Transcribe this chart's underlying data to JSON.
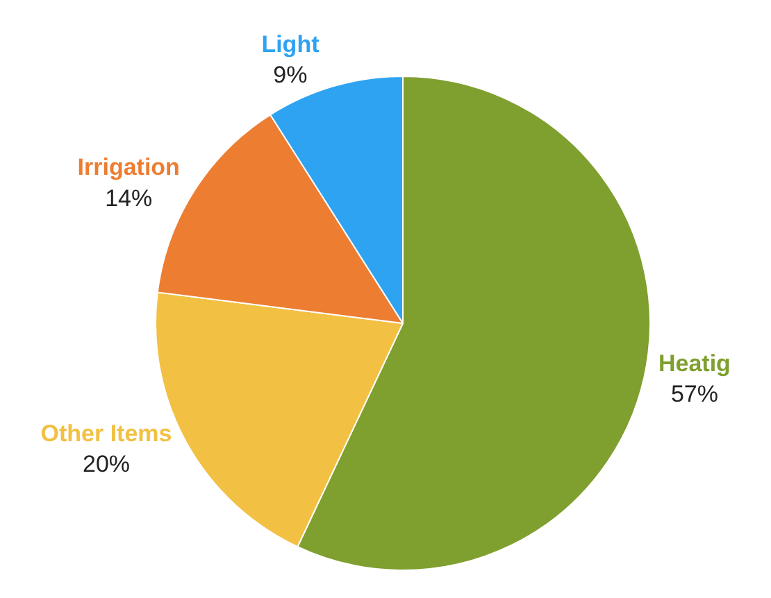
{
  "chart_data": {
    "type": "pie",
    "categories": [
      "Heatig",
      "Other Items",
      "Irrigation",
      "Light"
    ],
    "values": [
      57,
      20,
      14,
      9
    ],
    "colors": [
      "#7f9f2f",
      "#f2c043",
      "#ed7d31",
      "#2ea3f2"
    ],
    "value_labels": [
      "57%",
      "20%",
      "14%",
      "9%"
    ],
    "legend": false
  }
}
